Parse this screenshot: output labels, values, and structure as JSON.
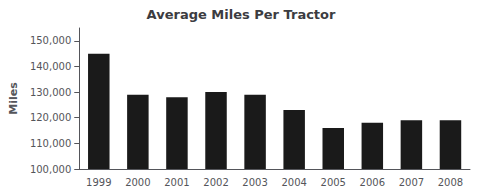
{
  "chart_data": {
    "type": "bar",
    "title": "Average Miles Per Tractor",
    "categories": [
      "1999",
      "2000",
      "2001",
      "2002",
      "2003",
      "2004",
      "2005",
      "2006",
      "2007",
      "2008"
    ],
    "values": [
      145000,
      129000,
      128000,
      130000,
      129000,
      123000,
      116000,
      118000,
      119000,
      119000
    ],
    "color": "#1a1a1a",
    "ylabel": "Miles",
    "ylim": [
      100000,
      155000
    ],
    "yticks": [
      {
        "value": 100000,
        "label": "100,000"
      },
      {
        "value": 110000,
        "label": "110,000"
      },
      {
        "value": 120000,
        "label": "120,000"
      },
      {
        "value": 130000,
        "label": "130,000"
      },
      {
        "value": 140000,
        "label": "140,000"
      },
      {
        "value": 150000,
        "label": "150,000"
      }
    ],
    "grid": false
  }
}
